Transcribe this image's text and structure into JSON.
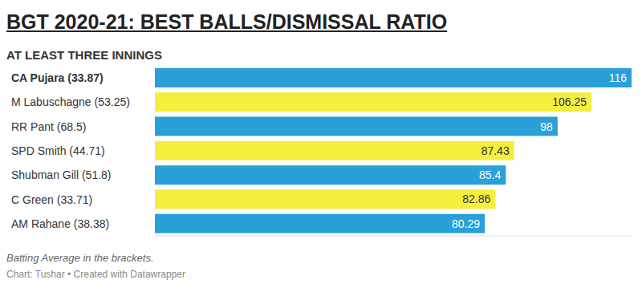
{
  "chart_data": {
    "type": "bar",
    "title": "BGT 2020-21: BEST BALLS/DISMISSAL RATIO",
    "subtitle": "AT LEAST THREE INNINGS",
    "orientation": "horizontal",
    "categories": [
      "CA Pujara (33.87)",
      "M Labuschagne (53.25)",
      "RR Pant (68.5)",
      "SPD Smith (44.71)",
      "Shubman Gill (51.8)",
      "C Green (33.71)",
      "AM Rahane (38.38)"
    ],
    "values": [
      116,
      106.25,
      98,
      87.43,
      85.4,
      82.86,
      80.29
    ],
    "colors": [
      "#2aa0d8",
      "#f4ee3f",
      "#2aa0d8",
      "#f4ee3f",
      "#2aa0d8",
      "#f4ee3f",
      "#2aa0d8"
    ],
    "xlim": [
      0,
      116
    ],
    "data_labels": true,
    "tick_labels": "y",
    "grid": false,
    "annotations": [
      "Batting Average in the brackets.",
      "Chart: Tushar • Created with Datawrapper"
    ]
  }
}
